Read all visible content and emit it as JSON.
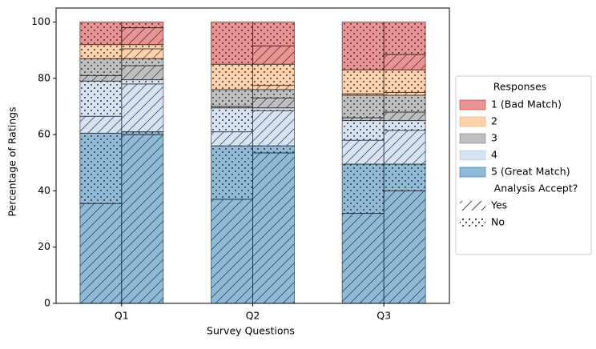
{
  "chart_data": {
    "type": "grouped_stacked_bar",
    "xlabel": "Survey Questions",
    "ylabel": "Percentage of Ratings",
    "categories": [
      "Q1",
      "Q2",
      "Q3"
    ],
    "ylim": [
      0,
      105
    ],
    "yticks": [
      0,
      20,
      40,
      60,
      80,
      100
    ],
    "legend_title": "Responses",
    "hatch_legend_title": "Analysis Accept?",
    "hatch_names": {
      "yes": "Yes",
      "no": "No"
    },
    "series": [
      {
        "name": "1 (Bad Match)",
        "color": "#d62728",
        "yes": [
          [
            0,
            6
          ],
          [
            0,
            6.5
          ],
          [
            0,
            5.5
          ]
        ],
        "no": [
          [
            8,
            2
          ],
          [
            15,
            8.5
          ],
          [
            17,
            11.5
          ]
        ]
      },
      {
        "name": "2",
        "color": "#ffa55c",
        "yes": [
          [
            0,
            3.5
          ],
          [
            0,
            1.5
          ],
          [
            0.5,
            1
          ]
        ],
        "no": [
          [
            5,
            1.5
          ],
          [
            9,
            7.5
          ],
          [
            8.5,
            8
          ]
        ]
      },
      {
        "name": "3",
        "color": "#7f7f7f",
        "yes": [
          [
            2,
            5
          ],
          [
            0.5,
            3.5
          ],
          [
            1,
            3
          ]
        ],
        "no": [
          [
            6,
            2.5
          ],
          [
            6,
            3
          ],
          [
            8,
            6
          ]
        ]
      },
      {
        "name": "4",
        "color": "#aec7e8",
        "yes": [
          [
            6,
            17
          ],
          [
            5,
            12.5
          ],
          [
            8.5,
            12
          ]
        ],
        "no": [
          [
            12.5,
            1.5
          ],
          [
            8.5,
            1
          ],
          [
            7,
            3.5
          ]
        ]
      },
      {
        "name": "5 (Great Match)",
        "color": "#1f77b4",
        "yes": [
          [
            35.5,
            60
          ],
          [
            37,
            53.5
          ],
          [
            32,
            40
          ]
        ],
        "no": [
          [
            25,
            1
          ],
          [
            19,
            2.5
          ],
          [
            17.5,
            9.5
          ]
        ]
      }
    ]
  }
}
